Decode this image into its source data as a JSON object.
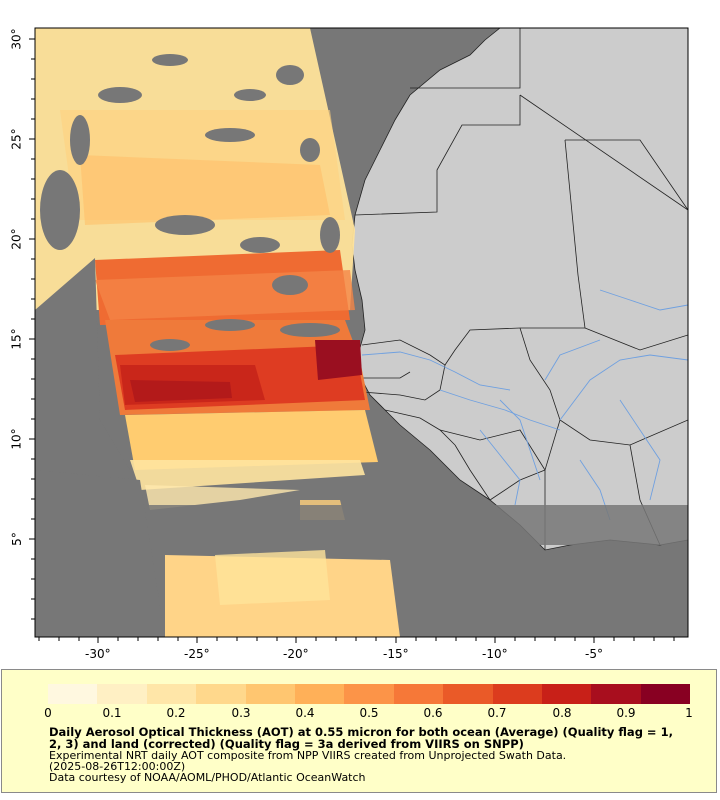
{
  "map": {
    "lat_ticks": [
      "30°",
      "25°",
      "20°",
      "15°",
      "10°",
      "5°"
    ],
    "lon_ticks": [
      "-30°",
      "-25°",
      "-20°",
      "-15°",
      "-10°",
      "-5°"
    ]
  },
  "legend": {
    "colorbar_ticks": [
      "0",
      "0.1",
      "0.2",
      "0.3",
      "0.4",
      "0.5",
      "0.6",
      "0.7",
      "0.8",
      "0.9",
      "1"
    ],
    "title": "Daily Aerosol Optical Thickness (AOT) at 0.55 micron for both ocean (Average) (Quality flag = 1, 2, 3) and land (corrected) (Quality flag = 3a derived from VIIRS on SNPP)",
    "line1": "Experimental NRT daily AOT composite from NPP VIIRS created from Unprojected Swath Data.",
    "line2": "(2025-08-26T12:00:00Z)",
    "line3": "Data courtesy of NOAA/AOML/PHOD/Atlantic OceanWatch"
  },
  "colors": {
    "ocean": "#777777",
    "land": "#cccccc",
    "rivers": "#6fa0e0",
    "legend_bg": "#ffffc8",
    "colorbar": [
      "#fff8e0",
      "#fff0c4",
      "#ffe6a8",
      "#ffd88c",
      "#ffc670",
      "#ffb058",
      "#fc9448",
      "#f67838",
      "#ea5a28",
      "#dc3c1e",
      "#c82018",
      "#a80e1e",
      "#880022"
    ]
  }
}
